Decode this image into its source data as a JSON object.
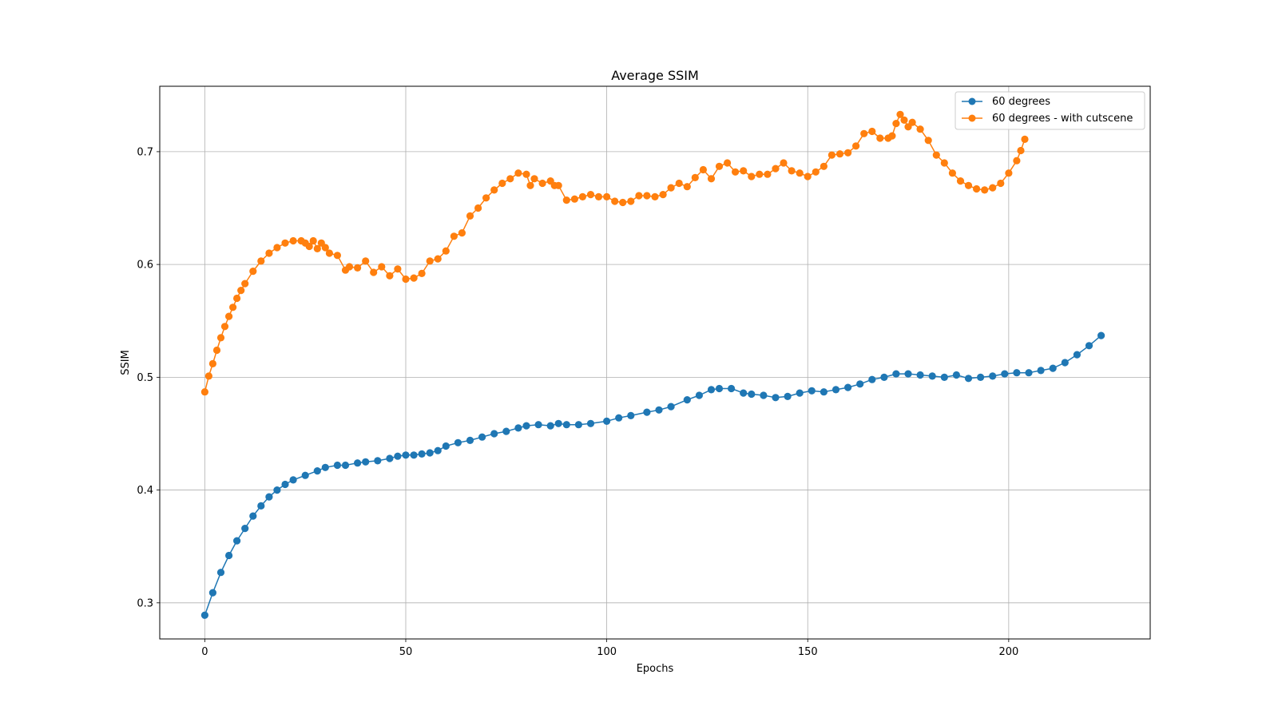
{
  "chart_data": {
    "type": "line",
    "title": "Average SSIM",
    "xlabel": "Epochs",
    "ylabel": "SSIM",
    "xlim": [
      -11.2,
      235.2
    ],
    "ylim": [
      0.268,
      0.758
    ],
    "xticks": [
      0,
      50,
      100,
      150,
      200
    ],
    "yticks": [
      0.3,
      0.4,
      0.5,
      0.6,
      0.7
    ],
    "ytick_labels": [
      "0.3",
      "0.4",
      "0.5",
      "0.6",
      "0.7"
    ],
    "grid": true,
    "legend_position": "top-right",
    "series": [
      {
        "name": "60 degrees",
        "color": "#1f77b4",
        "marker": "circle",
        "x": [
          0,
          2,
          4,
          6,
          8,
          10,
          12,
          14,
          16,
          18,
          20,
          22,
          25,
          28,
          30,
          33,
          35,
          38,
          40,
          43,
          46,
          48,
          50,
          52,
          54,
          56,
          58,
          60,
          63,
          66,
          69,
          72,
          75,
          78,
          80,
          83,
          86,
          88,
          90,
          93,
          96,
          100,
          103,
          106,
          110,
          113,
          116,
          120,
          123,
          126,
          128,
          131,
          134,
          136,
          139,
          142,
          145,
          148,
          151,
          154,
          157,
          160,
          163,
          166,
          169,
          172,
          175,
          178,
          181,
          184,
          187,
          190,
          193,
          196,
          199,
          202,
          205,
          208,
          211,
          214,
          217,
          220,
          223
        ],
        "values": [
          0.289,
          0.309,
          0.327,
          0.342,
          0.355,
          0.366,
          0.377,
          0.386,
          0.394,
          0.4,
          0.405,
          0.409,
          0.413,
          0.417,
          0.42,
          0.422,
          0.422,
          0.424,
          0.425,
          0.426,
          0.428,
          0.43,
          0.431,
          0.431,
          0.432,
          0.433,
          0.435,
          0.439,
          0.442,
          0.444,
          0.447,
          0.45,
          0.452,
          0.455,
          0.457,
          0.458,
          0.457,
          0.459,
          0.458,
          0.458,
          0.459,
          0.461,
          0.464,
          0.466,
          0.469,
          0.471,
          0.474,
          0.48,
          0.484,
          0.489,
          0.49,
          0.49,
          0.486,
          0.485,
          0.484,
          0.482,
          0.483,
          0.486,
          0.488,
          0.487,
          0.489,
          0.491,
          0.494,
          0.498,
          0.5,
          0.503,
          0.503,
          0.502,
          0.501,
          0.5,
          0.502,
          0.499,
          0.5,
          0.501,
          0.503,
          0.504,
          0.504,
          0.506,
          0.508,
          0.513,
          0.52,
          0.528,
          0.537
        ]
      },
      {
        "name": "60 degrees - with cutscene",
        "color": "#ff7f0e",
        "marker": "circle",
        "x": [
          0,
          1,
          2,
          3,
          4,
          5,
          6,
          7,
          8,
          9,
          10,
          12,
          14,
          16,
          18,
          20,
          22,
          24,
          25,
          26,
          27,
          28,
          29,
          30,
          31,
          33,
          35,
          36,
          38,
          40,
          42,
          44,
          46,
          48,
          50,
          52,
          54,
          56,
          58,
          60,
          62,
          64,
          66,
          68,
          70,
          72,
          74,
          76,
          78,
          80,
          81,
          82,
          84,
          86,
          87,
          88,
          90,
          92,
          94,
          96,
          98,
          100,
          102,
          104,
          106,
          108,
          110,
          112,
          114,
          116,
          118,
          120,
          122,
          124,
          126,
          128,
          130,
          132,
          134,
          136,
          138,
          140,
          142,
          144,
          146,
          148,
          150,
          152,
          154,
          156,
          158,
          160,
          162,
          164,
          166,
          168,
          170,
          171,
          172,
          173,
          174,
          175,
          176,
          178,
          180,
          182,
          184,
          186,
          188,
          190,
          192,
          194,
          196,
          198,
          200,
          202,
          203,
          204
        ],
        "values": [
          0.487,
          0.501,
          0.512,
          0.524,
          0.535,
          0.545,
          0.554,
          0.562,
          0.57,
          0.577,
          0.583,
          0.594,
          0.603,
          0.61,
          0.615,
          0.619,
          0.621,
          0.621,
          0.619,
          0.616,
          0.621,
          0.614,
          0.619,
          0.615,
          0.61,
          0.608,
          0.595,
          0.598,
          0.597,
          0.603,
          0.593,
          0.598,
          0.59,
          0.596,
          0.587,
          0.588,
          0.592,
          0.603,
          0.605,
          0.612,
          0.625,
          0.628,
          0.643,
          0.65,
          0.659,
          0.666,
          0.672,
          0.676,
          0.681,
          0.68,
          0.67,
          0.676,
          0.672,
          0.674,
          0.67,
          0.67,
          0.657,
          0.658,
          0.66,
          0.662,
          0.66,
          0.66,
          0.656,
          0.655,
          0.656,
          0.661,
          0.661,
          0.66,
          0.662,
          0.668,
          0.672,
          0.669,
          0.677,
          0.684,
          0.676,
          0.687,
          0.69,
          0.682,
          0.683,
          0.678,
          0.68,
          0.68,
          0.685,
          0.69,
          0.683,
          0.681,
          0.678,
          0.682,
          0.687,
          0.697,
          0.698,
          0.699,
          0.705,
          0.716,
          0.718,
          0.712,
          0.712,
          0.714,
          0.725,
          0.733,
          0.728,
          0.722,
          0.726,
          0.72,
          0.71,
          0.697,
          0.69,
          0.681,
          0.674,
          0.67,
          0.667,
          0.666,
          0.668,
          0.672,
          0.681,
          0.692,
          0.701,
          0.711
        ]
      }
    ]
  }
}
